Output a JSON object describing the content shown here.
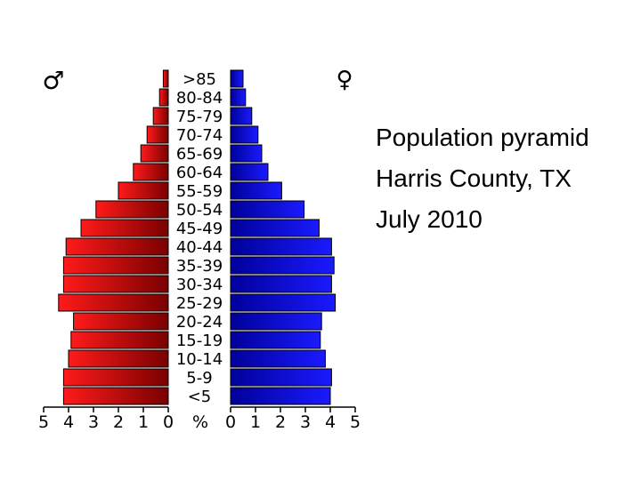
{
  "chart_data": {
    "type": "bar",
    "categories": [
      "<5",
      "5-9",
      "10-14",
      "15-19",
      "20-24",
      "25-29",
      "30-34",
      "35-39",
      "40-44",
      "45-49",
      "50-54",
      "55-59",
      "60-64",
      "65-69",
      "70-74",
      "75-79",
      "80-84",
      ">85"
    ],
    "series": [
      {
        "name": "♂",
        "values": [
          4.2,
          4.2,
          4.0,
          3.9,
          3.8,
          4.4,
          4.2,
          4.2,
          4.1,
          3.5,
          2.9,
          2.0,
          1.4,
          1.1,
          0.85,
          0.6,
          0.35,
          0.2
        ]
      },
      {
        "name": "♀",
        "values": [
          4.0,
          4.05,
          3.8,
          3.6,
          3.65,
          4.2,
          4.05,
          4.15,
          4.05,
          3.55,
          2.95,
          2.05,
          1.5,
          1.25,
          1.1,
          0.85,
          0.6,
          0.5
        ]
      }
    ],
    "x_ticks_left": [
      "5",
      "4",
      "3",
      "2",
      "1",
      "0"
    ],
    "x_ticks_right": [
      "0",
      "1",
      "2",
      "3",
      "4",
      "5"
    ],
    "xlabel": "%",
    "xlim": [
      0,
      5
    ],
    "male_color": "#e00000",
    "female_color": "#0000e0"
  },
  "caption": {
    "line1": "Population pyramid",
    "line2": "Harris County, TX",
    "line3": "July 2010"
  }
}
